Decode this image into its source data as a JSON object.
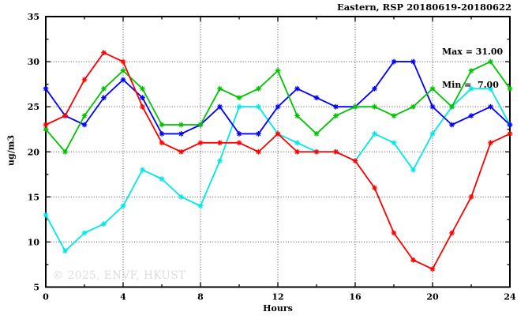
{
  "title": "Eastern, RSP 20180619-20180622",
  "annotation": {
    "max_label": "Max = 31.00",
    "min_label": "Min =  7.00"
  },
  "watermark": "© 2025, ENVF, HKUST",
  "colors": {
    "background": "#ffffff",
    "axis": "#000000",
    "grid": "#444444",
    "watermark_text": "#dcdcdc",
    "series_red": "#ff0000",
    "series_green": "#00c400",
    "series_blue": "#0000ff",
    "series_cyan": "#00e8e8"
  },
  "chart_data": {
    "type": "line",
    "title": "Eastern, RSP 20180619-20180622",
    "xlabel": "Hours",
    "ylabel": "ug/m3",
    "xlim": [
      0,
      24
    ],
    "ylim": [
      5,
      35
    ],
    "xticks": [
      0,
      4,
      8,
      12,
      16,
      20,
      24
    ],
    "yticks": [
      5,
      10,
      15,
      20,
      25,
      30,
      35
    ],
    "x_minor_ticks": [
      2,
      6,
      10,
      14,
      18,
      22
    ],
    "y_minor_ticks": [
      7.5,
      12.5,
      17.5,
      22.5,
      27.5,
      32.5
    ],
    "x_gridlines": [
      4,
      8,
      12,
      16,
      20
    ],
    "y_gridlines": [
      10,
      15,
      20,
      25,
      30
    ],
    "grid": "dotted",
    "legend": "none",
    "marker": "asterisk",
    "max_value": 31.0,
    "min_value": 7.0,
    "x": [
      0,
      1,
      2,
      3,
      4,
      5,
      6,
      7,
      8,
      9,
      10,
      11,
      12,
      13,
      14,
      15,
      16,
      17,
      18,
      19,
      20,
      21,
      22,
      23,
      24
    ],
    "series": [
      {
        "name": "cyan-line",
        "color": "#00e8e8",
        "values": [
          13,
          9,
          11,
          12,
          14,
          18,
          17,
          15,
          14,
          19,
          25,
          25,
          22,
          21,
          20,
          20,
          19,
          22,
          21,
          18,
          22,
          25,
          27,
          27,
          23
        ]
      },
      {
        "name": "blue-line",
        "color": "#0000ff",
        "values": [
          27,
          24,
          23,
          26,
          28,
          26,
          22,
          22,
          23,
          25,
          22,
          22,
          25,
          27,
          26,
          25,
          25,
          27,
          30,
          30,
          25,
          23,
          24,
          25,
          23
        ]
      },
      {
        "name": "green-line",
        "color": "#00c400",
        "values": [
          22.5,
          20,
          24,
          27,
          29,
          27,
          23,
          23,
          23,
          27,
          26,
          27,
          29,
          24,
          22,
          24,
          25,
          25,
          24,
          25,
          27,
          25,
          29,
          30,
          27
        ]
      },
      {
        "name": "red-line",
        "color": "#ff0000",
        "values": [
          23,
          24,
          28,
          31,
          30,
          25,
          21,
          20,
          21,
          21,
          21,
          20,
          22,
          20,
          20,
          20,
          19,
          16,
          11,
          8,
          7,
          11,
          15,
          21,
          22
        ]
      }
    ]
  }
}
